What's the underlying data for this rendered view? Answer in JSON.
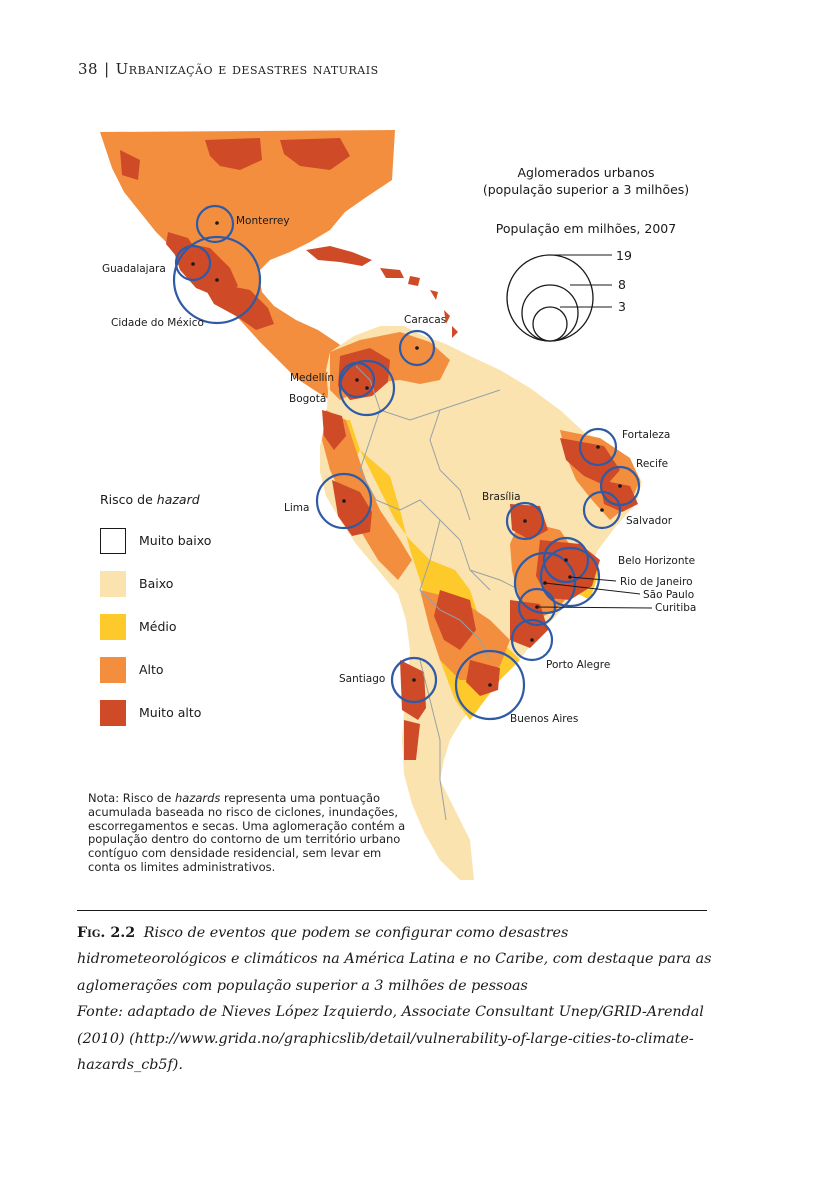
{
  "header": {
    "page_number": "38",
    "separator": "|",
    "chapter_title": "Urbanização e desastres naturais"
  },
  "map": {
    "size_legend": {
      "title_line1": "Aglomerados urbanos",
      "title_line2": "(população superior a 3 milhões)",
      "subtitle": "População em milhões, 2007",
      "values": [
        "19",
        "8",
        "3"
      ]
    },
    "cities": [
      {
        "name": "Monterrey"
      },
      {
        "name": "Guadalajara"
      },
      {
        "name": "Cidade do México"
      },
      {
        "name": "Caracas"
      },
      {
        "name": "Medellín"
      },
      {
        "name": "Bogotá"
      },
      {
        "name": "Lima"
      },
      {
        "name": "Fortaleza"
      },
      {
        "name": "Recife"
      },
      {
        "name": "Salvador"
      },
      {
        "name": "Brasília"
      },
      {
        "name": "Belo Horizonte"
      },
      {
        "name": "Rio de Janeiro"
      },
      {
        "name": "São Paulo"
      },
      {
        "name": "Curitiba"
      },
      {
        "name": "Porto Alegre"
      },
      {
        "name": "Santiago"
      },
      {
        "name": "Buenos Aires"
      }
    ],
    "colors": {
      "very_low": "#ffffff",
      "low": "#fbe3b0",
      "medium": "#fdc92b",
      "high": "#f38e3e",
      "very_high": "#cf4a27",
      "circle": "#2f5aa5",
      "border": "#9aa0a6"
    }
  },
  "legend": {
    "title_prefix": "Risco de ",
    "title_italic": "hazard",
    "items": [
      {
        "label": "Muito baixo",
        "color": "#ffffff"
      },
      {
        "label": "Baixo",
        "color": "#fbe3b0"
      },
      {
        "label": "Médio",
        "color": "#fdc92b"
      },
      {
        "label": "Alto",
        "color": "#f38e3e"
      },
      {
        "label": "Muito alto",
        "color": "#cf4a27"
      }
    ]
  },
  "note": {
    "prefix": "Nota: Risco de ",
    "italic": "hazards",
    "text": " representa uma pontuação acumulada baseada no risco de ciclones, inundações, escorregamentos e secas. Uma aglomeração contém a população dentro do contorno de um território urbano contíguo com densidade residencial, sem levar em conta os limites administrativos."
  },
  "caption": {
    "figure_label": "Fig. 2.2",
    "title": "Risco de eventos que podem se configurar como desastres hidrometeorológicos e climáticos na América Latina e no Caribe, com destaque para as aglomerações com população superior a 3 milhões de pessoas",
    "source": "Fonte: adaptado de Nieves López Izquierdo, Associate Consultant Unep/GRID-Arendal (2010) (http://www.grida.no/graphicslib/detail/vulnerability-of-large-cities-to-climate-hazards_cb5f)."
  }
}
